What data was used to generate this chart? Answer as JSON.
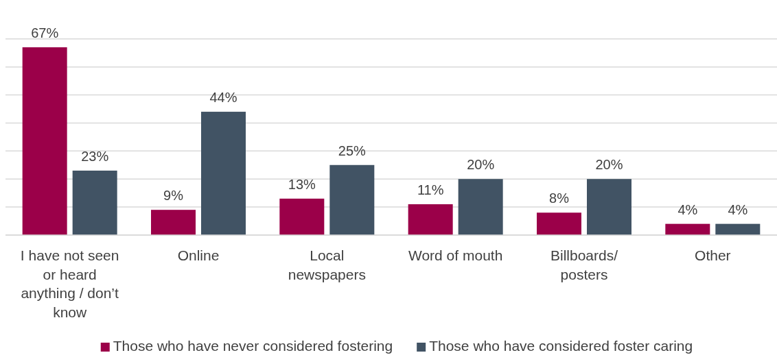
{
  "chart_data": {
    "type": "bar",
    "categories": [
      "I have not seen or heard anything / don’t know",
      "Online",
      "Local newspapers",
      "Word of mouth",
      "Billboards/ posters",
      "Other"
    ],
    "series": [
      {
        "name": "Those who have never considered fostering",
        "color": "#9b0049",
        "values": [
          67,
          9,
          13,
          11,
          8,
          4
        ],
        "value_labels": [
          "67%",
          "9%",
          "13%",
          "11%",
          "8%",
          "4%"
        ]
      },
      {
        "name": "Those who have considered foster caring",
        "color": "#415364",
        "values": [
          23,
          44,
          25,
          20,
          20,
          4
        ],
        "value_labels": [
          "23%",
          "44%",
          "25%",
          "20%",
          "20%",
          "4%"
        ]
      }
    ],
    "tick_labels": "x",
    "grid": "y",
    "legend": "bottom"
  }
}
